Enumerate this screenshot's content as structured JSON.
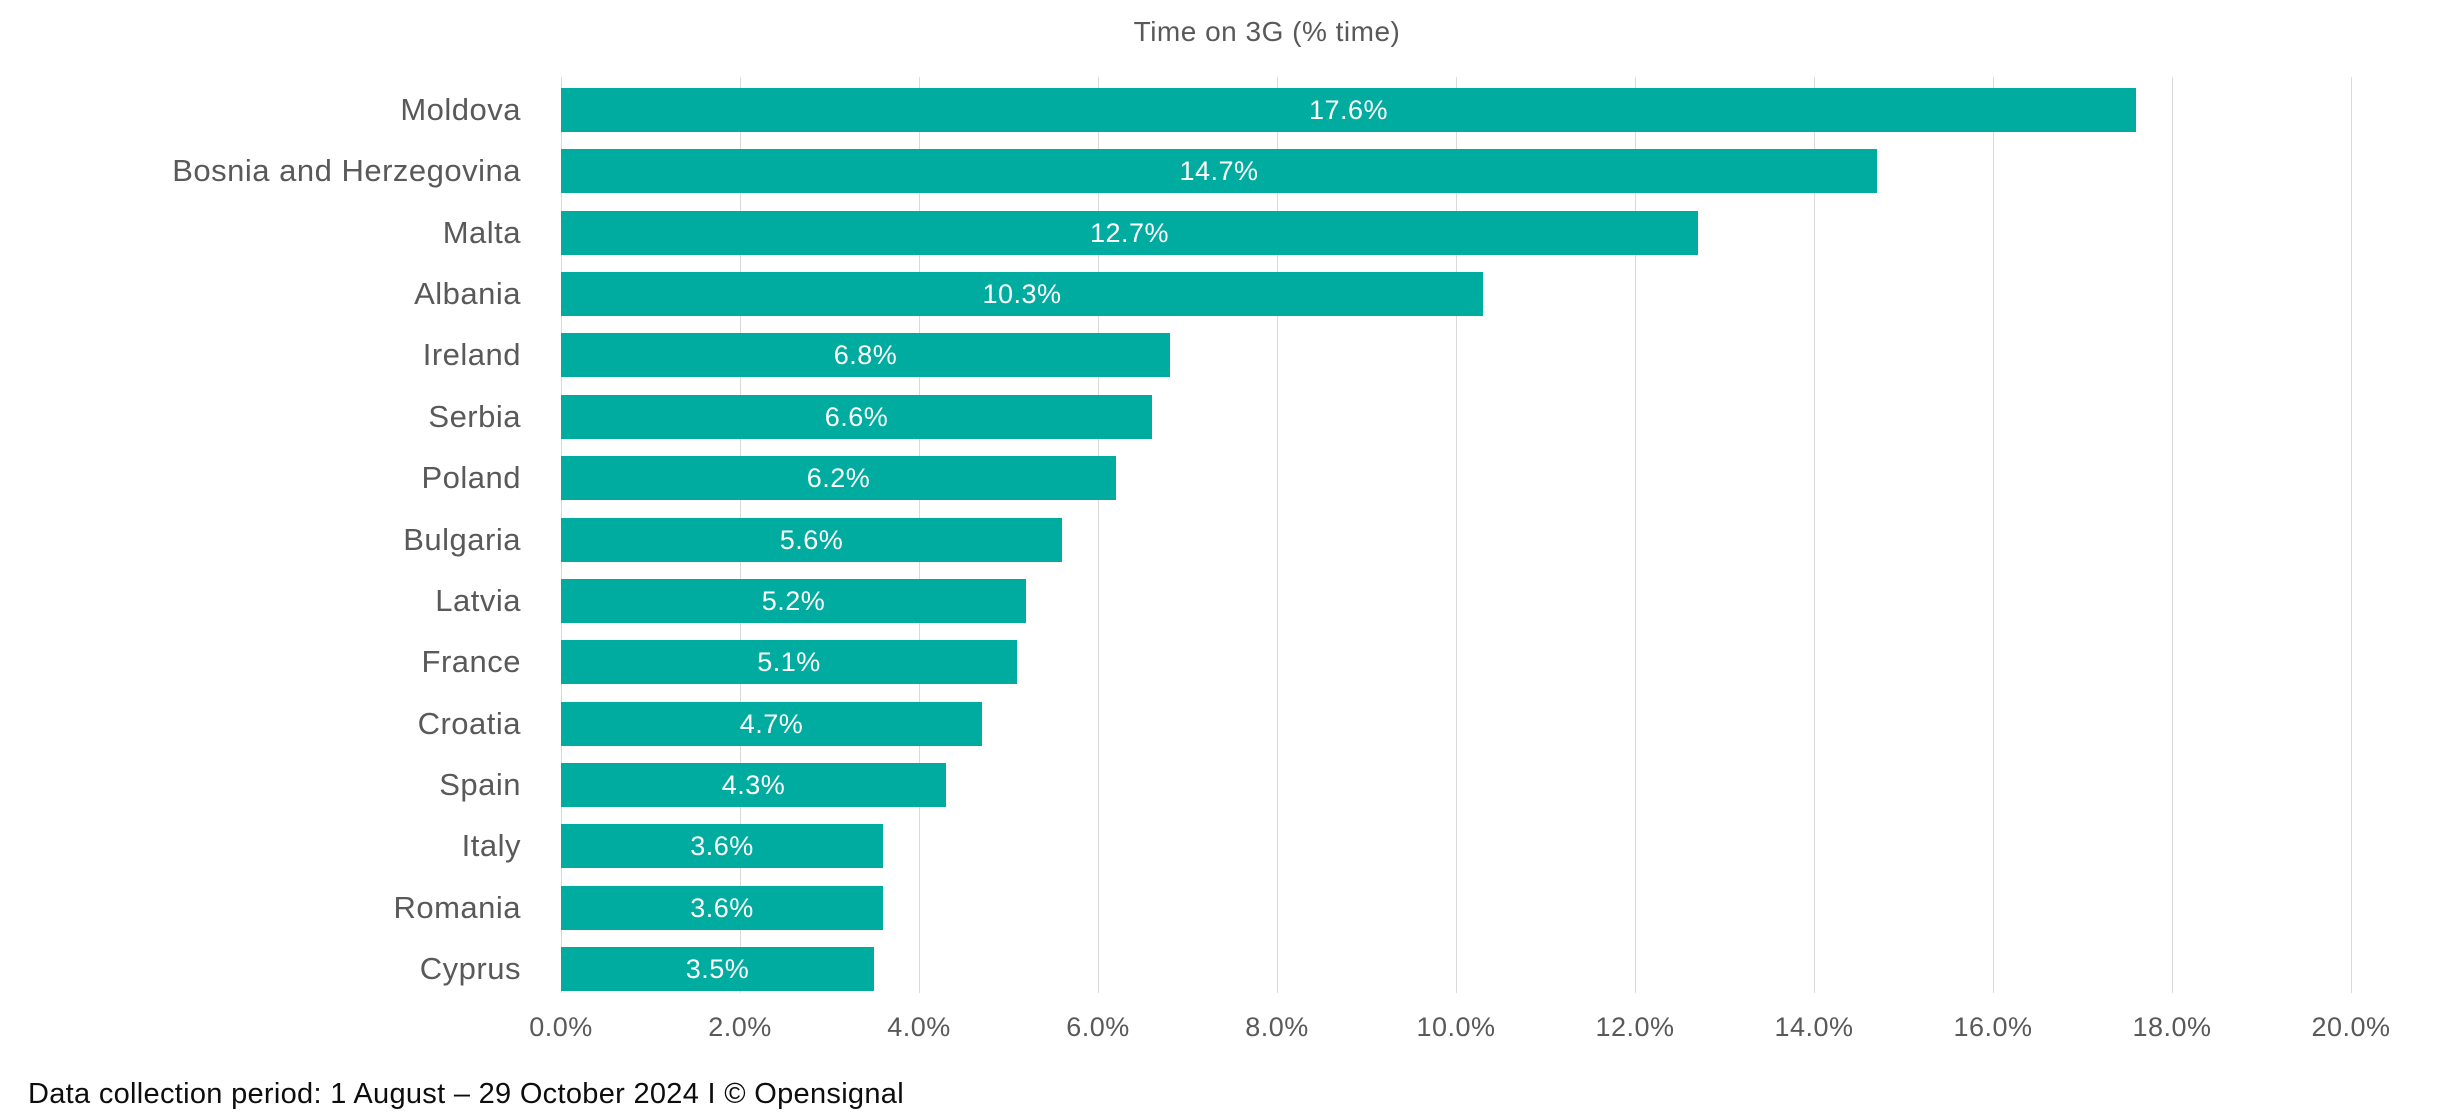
{
  "title": "Time on 3G (% time)",
  "footer": "Data collection period: 1 August – 29 October 2024 I © Opensignal",
  "chart_data": {
    "type": "bar",
    "orientation": "horizontal",
    "title": "Time on 3G (% time)",
    "categories": [
      "Moldova",
      "Bosnia and Herzegovina",
      "Malta",
      "Albania",
      "Ireland",
      "Serbia",
      "Poland",
      "Bulgaria",
      "Latvia",
      "France",
      "Croatia",
      "Spain",
      "Italy",
      "Romania",
      "Cyprus"
    ],
    "values": [
      17.6,
      14.7,
      12.7,
      10.3,
      6.8,
      6.6,
      6.2,
      5.6,
      5.2,
      5.1,
      4.7,
      4.3,
      3.6,
      3.6,
      3.5
    ],
    "value_labels": [
      "17.6%",
      "14.7%",
      "12.7%",
      "10.3%",
      "6.8%",
      "6.6%",
      "6.2%",
      "5.6%",
      "5.2%",
      "5.1%",
      "4.7%",
      "4.3%",
      "3.6%",
      "3.6%",
      "3.5%"
    ],
    "xlabel": "",
    "ylabel": "",
    "xlim": [
      0,
      20
    ],
    "x_tick_step": 2,
    "x_tick_labels": [
      "0.0%",
      "2.0%",
      "4.0%",
      "6.0%",
      "8.0%",
      "10.0%",
      "12.0%",
      "14.0%",
      "16.0%",
      "18.0%",
      "20.0%"
    ],
    "grid": true,
    "legend": false,
    "value_labels_position": "center-inside",
    "colors": {
      "bar": "#00aca0",
      "value_label": "#ffffff",
      "category_label": "#595959",
      "axis_label": "#595959",
      "title": "#595959",
      "gridline": "#d9d9d9",
      "footer": "#0d0d0d"
    }
  }
}
